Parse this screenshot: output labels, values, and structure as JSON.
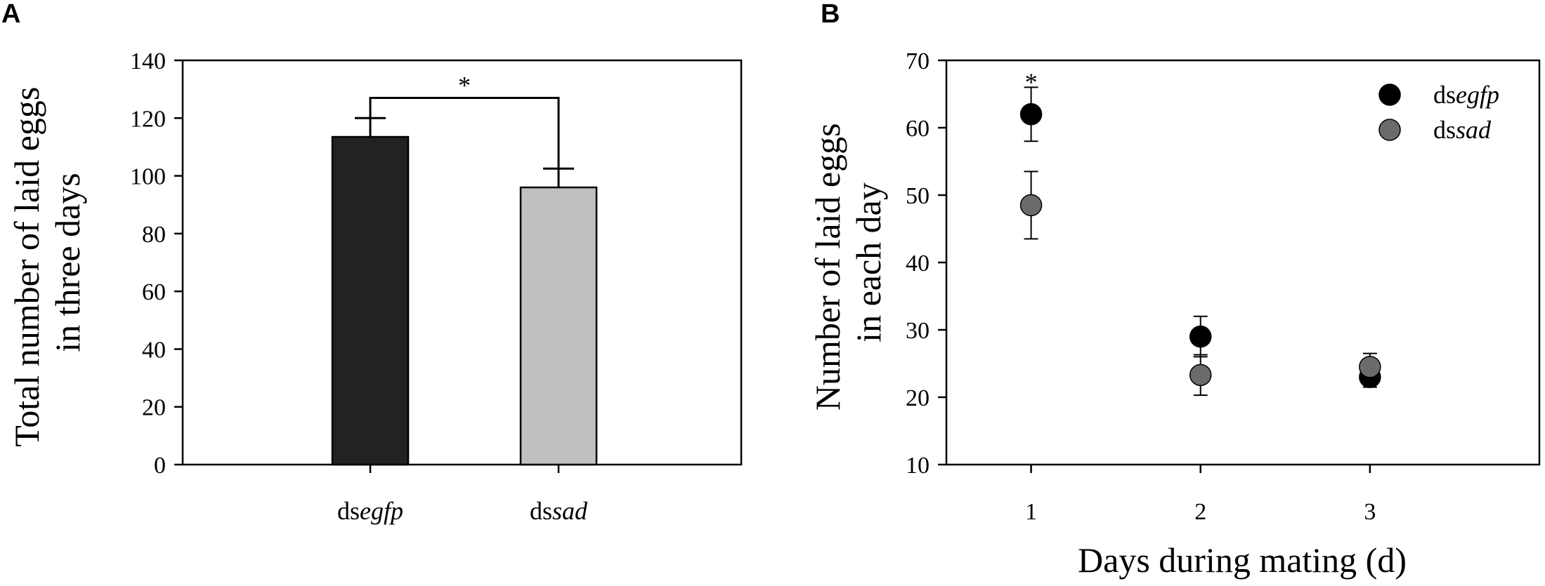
{
  "panels": {
    "a": {
      "letter": "A"
    },
    "b": {
      "letter": "B"
    }
  },
  "chart_data": [
    {
      "type": "bar",
      "categories": [
        {
          "prefix": "ds",
          "gene": "egfp"
        },
        {
          "prefix": "ds",
          "gene": "sad"
        }
      ],
      "values": [
        113.5,
        96
      ],
      "errors": [
        6.5,
        6.5
      ],
      "colors": [
        "#222222",
        "#c0c0c0"
      ],
      "ylabel_lines": [
        "Total number of laid eggs",
        "in three days"
      ],
      "xlabel": "",
      "ylim": [
        0,
        140
      ],
      "yticks": [
        0,
        20,
        40,
        60,
        80,
        100,
        120,
        140
      ],
      "significance": {
        "between": [
          0,
          1
        ],
        "label": "*",
        "y": 127
      },
      "grid": false
    },
    {
      "type": "scatter",
      "x": [
        1,
        2,
        3
      ],
      "xlim": [
        0.5,
        4
      ],
      "xticks": [
        1,
        2,
        3
      ],
      "ylim": [
        10,
        70
      ],
      "yticks": [
        10,
        20,
        30,
        40,
        50,
        60,
        70
      ],
      "xlabel": "Days during mating (d)",
      "ylabel_lines": [
        "Number of laid eggs",
        "in each day"
      ],
      "series": [
        {
          "name_prefix": "ds",
          "name_gene": "egfp",
          "color": "#000000",
          "values": [
            62,
            29,
            23
          ],
          "errors": [
            4,
            3,
            1.5
          ]
        },
        {
          "name_prefix": "ds",
          "name_gene": "sad",
          "color": "#6b6b6b",
          "values": [
            48.5,
            23.3,
            24.5
          ],
          "errors": [
            5,
            3,
            2
          ]
        }
      ],
      "annotations": [
        {
          "x": 1,
          "y": 67,
          "text": "*"
        }
      ],
      "legend_position": "top-right",
      "grid": false
    }
  ]
}
